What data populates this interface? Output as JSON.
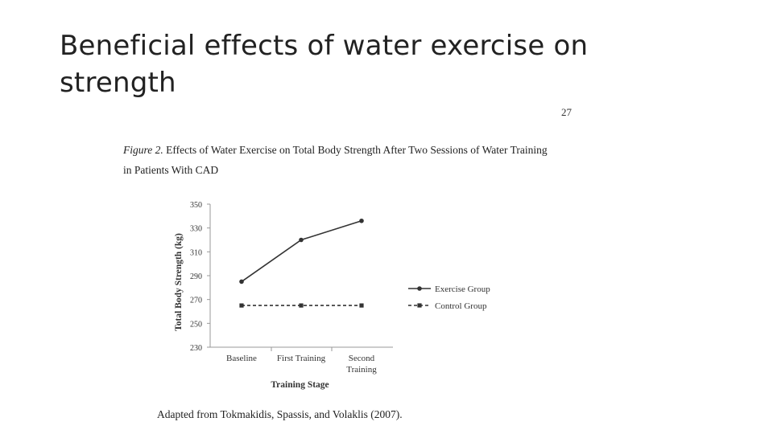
{
  "slide": {
    "title": "Beneficial effects of water exercise on strength",
    "page_number": "27"
  },
  "figure": {
    "label": "Figure 2.",
    "caption": " Effects of Water Exercise on Total Body Strength After Two Sessions of Water Training in Patients With CAD",
    "source": "Adapted from Tokmakidis, Spassis, and Volaklis (2007)."
  },
  "chart_data": {
    "type": "line",
    "categories": [
      "Baseline",
      "First Training",
      "Second Training"
    ],
    "series": [
      {
        "name": "Exercise Group",
        "values": [
          285,
          320,
          336
        ],
        "style": "solid",
        "marker": "circle",
        "color": "#333333"
      },
      {
        "name": "Control Group",
        "values": [
          265,
          265,
          265
        ],
        "style": "dashed",
        "marker": "square",
        "color": "#333333"
      }
    ],
    "xlabel": "Training Stage",
    "ylabel": "Total Body Strength (kg)",
    "ylim": [
      230,
      350
    ],
    "yticks": [
      230,
      250,
      270,
      290,
      310,
      330,
      350
    ],
    "grid": false,
    "legend": "right"
  }
}
